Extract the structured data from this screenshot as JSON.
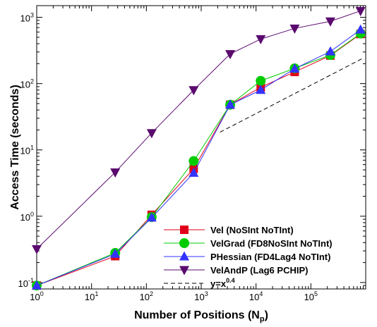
{
  "chart_data": {
    "type": "line",
    "title": "",
    "xlabel": {
      "text": "Number of Positions (N",
      "sub": "p",
      "suffix": ")"
    },
    "ylabel": "Access Time (seconds)",
    "xscale": "log",
    "yscale": "log",
    "xlim": [
      1,
      1000000
    ],
    "ylim": [
      0.08,
      1500
    ],
    "xticks": [
      {
        "value": 1,
        "base": "10",
        "exp": "0"
      },
      {
        "value": 10,
        "base": "10",
        "exp": "1"
      },
      {
        "value": 100,
        "base": "10",
        "exp": "2"
      },
      {
        "value": 1000,
        "base": "10",
        "exp": "3"
      },
      {
        "value": 10000,
        "base": "10",
        "exp": "4"
      },
      {
        "value": 100000,
        "base": "10",
        "exp": "5"
      }
    ],
    "yticks": [
      {
        "value": 0.1,
        "base": "10",
        "exp": "-1"
      },
      {
        "value": 1,
        "base": "10",
        "exp": "0"
      },
      {
        "value": 10,
        "base": "10",
        "exp": "1"
      },
      {
        "value": 100,
        "base": "10",
        "exp": "2"
      },
      {
        "value": 1000,
        "base": "10",
        "exp": "3"
      }
    ],
    "grid": false,
    "legend_position": "bottom-right",
    "series": [
      {
        "name": "Vel (NoSInt NoTInt)",
        "color": "#e0001a",
        "marker": "square",
        "x": [
          1,
          27,
          125,
          729,
          3375,
          12167,
          50653,
          226981,
          804357
        ],
        "y": [
          0.09,
          0.25,
          1.05,
          5.2,
          48,
          88,
          150,
          265,
          560
        ]
      },
      {
        "name": "VelGrad (FD8NoSInt NoTInt)",
        "color": "#00cc00",
        "marker": "circle",
        "x": [
          1,
          27,
          125,
          729,
          3375,
          12167,
          50653,
          226981,
          804357
        ],
        "y": [
          0.09,
          0.28,
          0.97,
          6.8,
          48,
          110,
          170,
          270,
          570
        ]
      },
      {
        "name": "PHessian (FD4Lag4 NoTInt)",
        "color": "#3333ff",
        "marker": "triangle-up",
        "x": [
          1,
          27,
          125,
          729,
          3375,
          12167,
          50653,
          226981,
          804357
        ],
        "y": [
          0.09,
          0.27,
          0.95,
          4.5,
          48,
          80,
          168,
          305,
          650
        ]
      },
      {
        "name": "VelAndP (Lag6 PCHIP)",
        "color": "#5a0a6e",
        "marker": "triangle-down",
        "x": [
          1,
          27,
          125,
          729,
          3375,
          12167,
          50653,
          226981,
          804357
        ],
        "y": [
          0.32,
          4.6,
          18,
          80,
          280,
          470,
          680,
          870,
          1250
        ]
      }
    ],
    "reference_line": {
      "label_base": "y=x",
      "label_exp": "0.4",
      "color": "#000000",
      "dash": "dashed",
      "x": [
        2200,
        880000
      ],
      "y": [
        18.5,
        240
      ]
    }
  }
}
